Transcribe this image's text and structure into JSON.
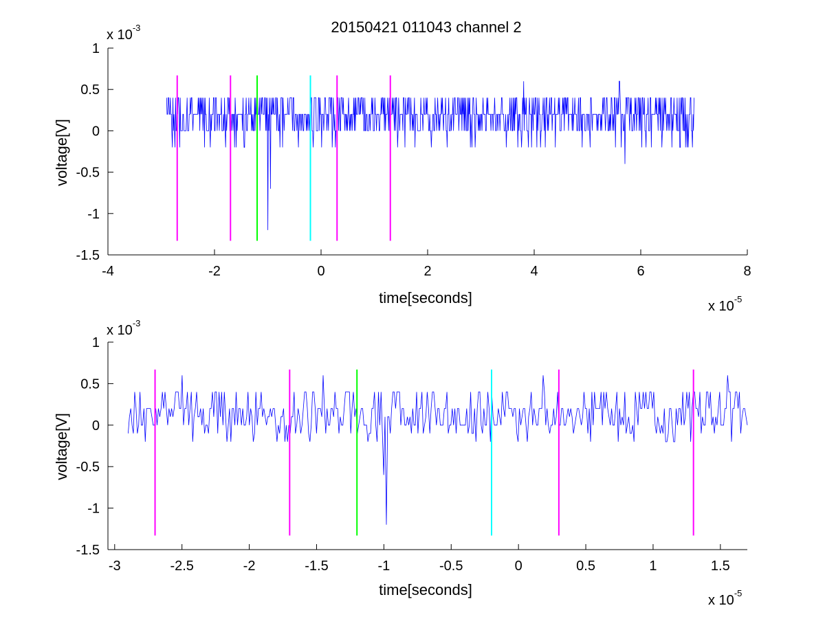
{
  "title": "20150421 011043 channel 2",
  "colors": {
    "signal": "#0000ff",
    "magenta": "#ff00ff",
    "green": "#00ff00",
    "cyan": "#00ffff",
    "axis": "#000000"
  },
  "chart_data": [
    {
      "type": "line",
      "xlabel": "time[seconds]",
      "ylabel": "voltage[V]",
      "xlim": [
        -4,
        8
      ],
      "ylim": [
        -1.5,
        1
      ],
      "x_ticks": [
        "-4",
        "-2",
        "0",
        "2",
        "4",
        "6",
        "8"
      ],
      "y_ticks": [
        "1",
        "0.5",
        "0",
        "-0.5",
        "-1",
        "-1.5"
      ],
      "x_exponent": {
        "base": "x 10",
        "power": "-5"
      },
      "y_exponent": {
        "base": "x 10",
        "power": "-3"
      },
      "series": [
        {
          "values_description": "",
          "x_range": [
            -2.9,
            7.0
          ],
          "levels": [
            -0.4,
            -0.2,
            0,
            0.2,
            0.4,
            0.6
          ],
          "spikes": [
            [
              -1.0,
              -1.2
            ],
            [
              -0.95,
              -0.7
            ],
            [
              5.7,
              -0.4
            ],
            [
              3.8,
              0.6
            ],
            [
              5.6,
              0.6
            ]
          ]
        }
      ],
      "markers": [
        {
          "x": -2.7,
          "color": "magenta"
        },
        {
          "x": -1.7,
          "color": "magenta"
        },
        {
          "x": -1.2,
          "color": "green"
        },
        {
          "x": -0.2,
          "color": "cyan"
        },
        {
          "x": 0.3,
          "color": "magenta"
        },
        {
          "x": 1.3,
          "color": "magenta"
        }
      ],
      "marker_range": [
        -1.33,
        0.67
      ]
    },
    {
      "type": "line",
      "xlabel": "time[seconds]",
      "ylabel": "voltage[V]",
      "xlim": [
        -3.05,
        1.7
      ],
      "ylim": [
        -1.5,
        1
      ],
      "x_ticks": [
        "-3",
        "-2.5",
        "-2",
        "-1.5",
        "-1",
        "-0.5",
        "0",
        "0.5",
        "1",
        "1.5"
      ],
      "y_ticks": [
        "1",
        "0.5",
        "0",
        "-0.5",
        "-1",
        "-1.5"
      ],
      "x_exponent": {
        "base": "x 10",
        "power": "-5"
      },
      "y_exponent": {
        "base": "x 10",
        "power": "-3"
      },
      "series": [
        {
          "x_range": [
            -2.9,
            1.7
          ],
          "levels": [
            -0.2,
            0,
            0.2,
            0.4,
            0.6
          ],
          "spikes": [
            [
              -0.98,
              -1.2
            ],
            [
              -1.0,
              -0.6
            ],
            [
              -2.5,
              0.6
            ],
            [
              -1.45,
              0.6
            ],
            [
              0.18,
              0.6
            ],
            [
              1.55,
              0.6
            ]
          ]
        }
      ],
      "markers": [
        {
          "x": -2.7,
          "color": "magenta"
        },
        {
          "x": -1.7,
          "color": "magenta"
        },
        {
          "x": -1.2,
          "color": "green"
        },
        {
          "x": -0.2,
          "color": "cyan"
        },
        {
          "x": 0.3,
          "color": "magenta"
        },
        {
          "x": 1.3,
          "color": "magenta"
        }
      ],
      "marker_range": [
        -1.33,
        0.67
      ]
    }
  ]
}
